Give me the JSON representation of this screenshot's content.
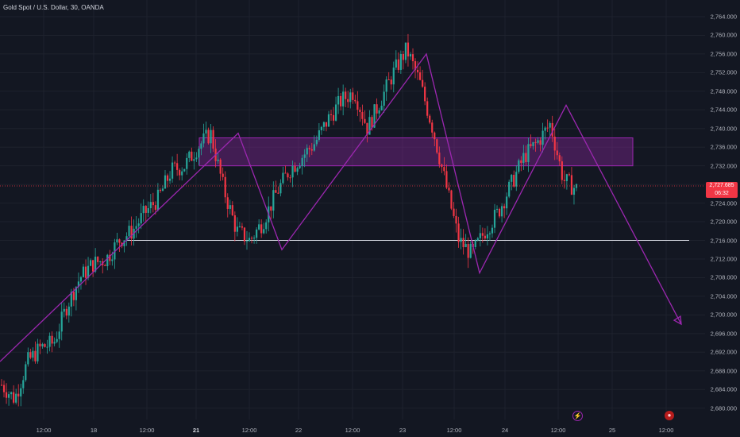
{
  "title": "Gold Spot / U.S. Dollar, 30, OANDA",
  "price_axis": {
    "labels": [
      "2,764.000",
      "2,760.000",
      "2,756.000",
      "2,752.000",
      "2,748.000",
      "2,744.000",
      "2,740.000",
      "2,736.000",
      "2,732.000",
      "2,728.000",
      "2,724.000",
      "2,720.000",
      "2,716.000",
      "2,712.000",
      "2,708.000",
      "2,704.000",
      "2,700.000",
      "2,696.000",
      "2,692.000",
      "2,688.000",
      "2,684.000",
      "2,680.000"
    ],
    "values": [
      2764,
      2760,
      2756,
      2752,
      2748,
      2744,
      2740,
      2736,
      2732,
      2728,
      2724,
      2720,
      2716,
      2712,
      2708,
      2704,
      2700,
      2696,
      2692,
      2688,
      2684,
      2680
    ]
  },
  "time_axis": {
    "labels": [
      {
        "text": "12:00",
        "bold": false
      },
      {
        "text": "18",
        "bold": false
      },
      {
        "text": "12:00",
        "bold": false
      },
      {
        "text": "21",
        "bold": true
      },
      {
        "text": "12:00",
        "bold": false
      },
      {
        "text": "22",
        "bold": false
      },
      {
        "text": "12:00",
        "bold": false
      },
      {
        "text": "23",
        "bold": false
      },
      {
        "text": "12:00",
        "bold": false
      },
      {
        "text": "24",
        "bold": false
      },
      {
        "text": "12:00",
        "bold": false
      },
      {
        "text": "25",
        "bold": false
      },
      {
        "text": "12:00",
        "bold": false
      }
    ]
  },
  "current_price": {
    "price": "2,727.685",
    "countdown": "06:32",
    "value": 2727.685
  },
  "colors": {
    "background": "#131722",
    "up": "#26a69a",
    "down": "#f23645",
    "pattern": "#9c27b0",
    "zone_fill": "#9c27b0",
    "support_line": "#e0e3eb",
    "grid": "#1e222d"
  },
  "icons": [
    "lightning-icon",
    "economic-event-icon"
  ],
  "chart_data": {
    "type": "candlestick",
    "symbol": "XAUUSD",
    "interval": "30",
    "ylim": [
      2678,
      2766
    ],
    "resistance_zone": [
      2732,
      2738
    ],
    "support_level": 2716,
    "pattern_path_prices": [
      2690,
      2739,
      2714,
      2756,
      2709,
      2745,
      2698
    ],
    "price_path": [
      2685,
      2682,
      2690,
      2693,
      2694,
      2702,
      2708,
      2711,
      2712,
      2716,
      2718,
      2722,
      2725,
      2731,
      2732,
      2736,
      2739,
      2727,
      2718,
      2716,
      2720,
      2726,
      2731,
      2734,
      2737,
      2742,
      2746,
      2748,
      2740,
      2746,
      2752,
      2757,
      2750,
      2740,
      2728,
      2716,
      2713,
      2718,
      2722,
      2728,
      2734,
      2737,
      2741,
      2729,
      2727
    ]
  }
}
